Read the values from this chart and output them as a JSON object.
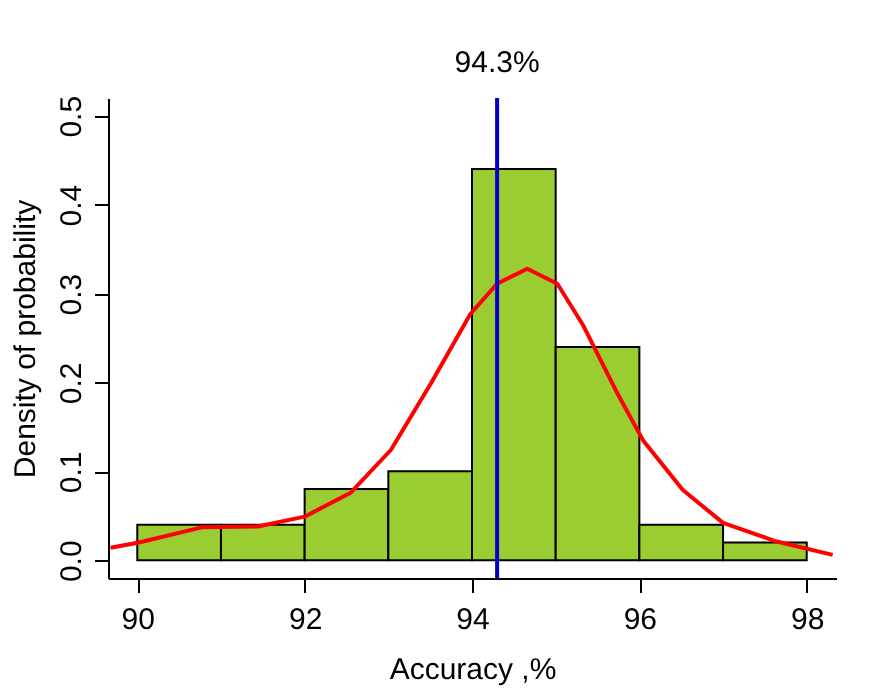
{
  "chart_data": {
    "type": "histogram",
    "xlabel": "Accuracy ,%",
    "ylabel": "Density of probability",
    "bins": [
      90,
      91,
      92,
      93,
      94,
      95,
      96,
      97,
      98
    ],
    "values": [
      0.04,
      0.04,
      0.08,
      0.1,
      0.44,
      0.24,
      0.04,
      0.02
    ],
    "color": "#9acd32",
    "series": [
      {
        "type": "line",
        "color": "#ff0000",
        "x": [
          89.68,
          90.02,
          90.77,
          91.44,
          92.0,
          92.55,
          93.03,
          93.51,
          93.98,
          94.3,
          94.66,
          95.02,
          95.33,
          95.73,
          96.05,
          96.52,
          97.0,
          97.64,
          98.31
        ],
        "values": [
          0.014,
          0.02,
          0.037,
          0.038,
          0.049,
          0.076,
          0.124,
          0.199,
          0.277,
          0.311,
          0.328,
          0.311,
          0.264,
          0.189,
          0.134,
          0.079,
          0.042,
          0.021,
          0.006
        ]
      }
    ],
    "ref_lines": [
      {
        "axis": "x",
        "value": 94.3,
        "label": "94.3%",
        "color": "#0000cc"
      }
    ],
    "xlim": [
      89.65,
      98.35
    ],
    "xticks": [
      90,
      92,
      94,
      96,
      98
    ],
    "ylim": [
      -0.02,
      0.52
    ],
    "yticks": [
      {
        "value": 0,
        "label": "0.0"
      },
      0.1,
      0.2,
      0.3,
      0.4,
      0.5
    ],
    "grid": false
  }
}
